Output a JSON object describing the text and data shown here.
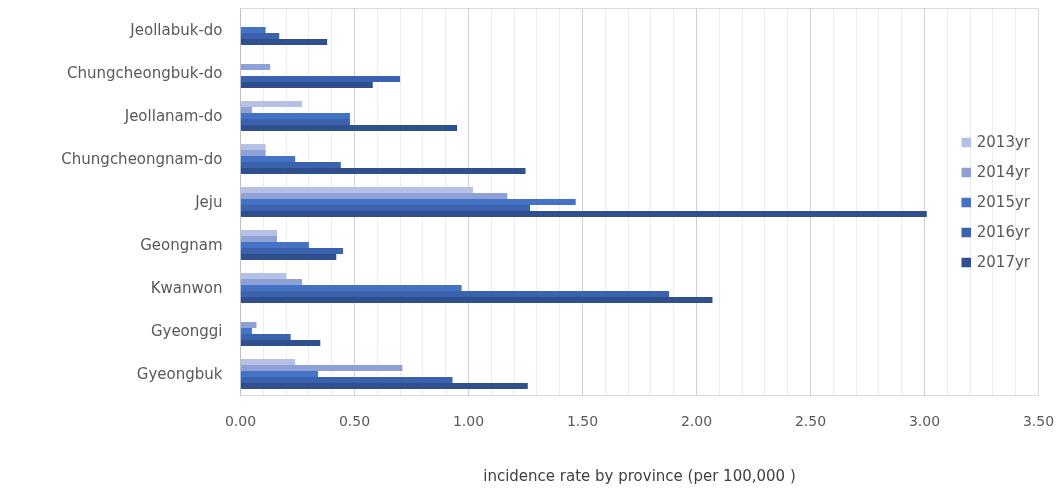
{
  "chart_data": {
    "type": "bar",
    "orientation": "horizontal",
    "xlabel": "incidence rate by province (per 100,000 )",
    "categories": [
      "Jeollabuk-do",
      "Chungcheongbuk-do",
      "Jeollanam-do",
      "Chungcheongnam-do",
      "Jeju",
      "Geongnam",
      "Kwanwon",
      "Gyeonggi",
      "Gyeongbuk"
    ],
    "series": [
      {
        "name": "2013yr",
        "color": "#b4c0e4",
        "values": [
          null,
          null,
          0.27,
          0.11,
          1.02,
          0.16,
          0.2,
          null,
          0.24
        ]
      },
      {
        "name": "2014yr",
        "color": "#8ea0d6",
        "values": [
          null,
          0.13,
          0.05,
          0.11,
          1.17,
          0.16,
          0.27,
          0.07,
          0.71
        ]
      },
      {
        "name": "2015yr",
        "color": "#4472c4",
        "values": [
          0.11,
          null,
          0.48,
          0.24,
          1.47,
          0.3,
          0.97,
          0.05,
          0.34
        ]
      },
      {
        "name": "2016yr",
        "color": "#3a62ad",
        "values": [
          0.17,
          0.7,
          0.48,
          0.44,
          1.27,
          0.45,
          1.88,
          0.22,
          0.93
        ]
      },
      {
        "name": "2017yr",
        "color": "#2f4f8f",
        "values": [
          0.38,
          0.58,
          0.95,
          1.25,
          3.01,
          0.42,
          2.07,
          0.35,
          1.26
        ]
      }
    ],
    "xlim": [
      0,
      3.5
    ],
    "xticks": [
      {
        "value": 0,
        "label": "0.00"
      },
      {
        "value": 0.5,
        "label": "0.50"
      },
      {
        "value": 1,
        "label": "1.00"
      },
      {
        "value": 1.5,
        "label": "1.50"
      },
      {
        "value": 2,
        "label": "2.00"
      },
      {
        "value": 2.5,
        "label": "2.50"
      },
      {
        "value": 3,
        "label": "3.00"
      },
      {
        "value": 3.5,
        "label": "3.50"
      }
    ],
    "grid": "x",
    "legend": "right"
  }
}
